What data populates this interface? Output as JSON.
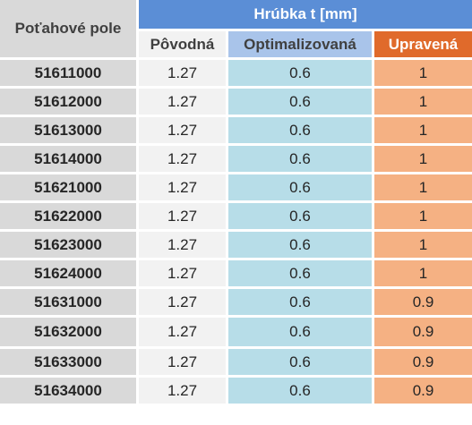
{
  "table": {
    "field_header": "Poťahové pole",
    "group_header": "Hrúbka t [mm]",
    "columns": {
      "original": "Pôvodná",
      "optimized": "Optimalizovaná",
      "adjusted": "Upravená"
    },
    "colors": {
      "field_bg": "#d9d9d9",
      "group_header_bg": "#5b8ed6",
      "original_bg": "#f2f2f2",
      "optimized_header_bg": "#a9c4ea",
      "optimized_bg": "#b7dde8",
      "adjusted_header_bg": "#e06a2b",
      "adjusted_bg": "#f5b183"
    },
    "rows": [
      {
        "field": "51611000",
        "original": "1.27",
        "optimized": "0.6",
        "adjusted": "1"
      },
      {
        "field": "51612000",
        "original": "1.27",
        "optimized": "0.6",
        "adjusted": "1"
      },
      {
        "field": "51613000",
        "original": "1.27",
        "optimized": "0.6",
        "adjusted": "1"
      },
      {
        "field": "51614000",
        "original": "1.27",
        "optimized": "0.6",
        "adjusted": "1"
      },
      {
        "field": "51621000",
        "original": "1.27",
        "optimized": "0.6",
        "adjusted": "1"
      },
      {
        "field": "51622000",
        "original": "1.27",
        "optimized": "0.6",
        "adjusted": "1"
      },
      {
        "field": "51623000",
        "original": "1.27",
        "optimized": "0.6",
        "adjusted": "1"
      },
      {
        "field": "51624000",
        "original": "1.27",
        "optimized": "0.6",
        "adjusted": "1"
      },
      {
        "field": "51631000",
        "original": "1.27",
        "optimized": "0.6",
        "adjusted": "0.9"
      },
      {
        "field": "51632000",
        "original": "1.27",
        "optimized": "0.6",
        "adjusted": "0.9"
      },
      {
        "field": "51633000",
        "original": "1.27",
        "optimized": "0.6",
        "adjusted": "0.9"
      },
      {
        "field": "51634000",
        "original": "1.27",
        "optimized": "0.6",
        "adjusted": "0.9"
      }
    ]
  }
}
